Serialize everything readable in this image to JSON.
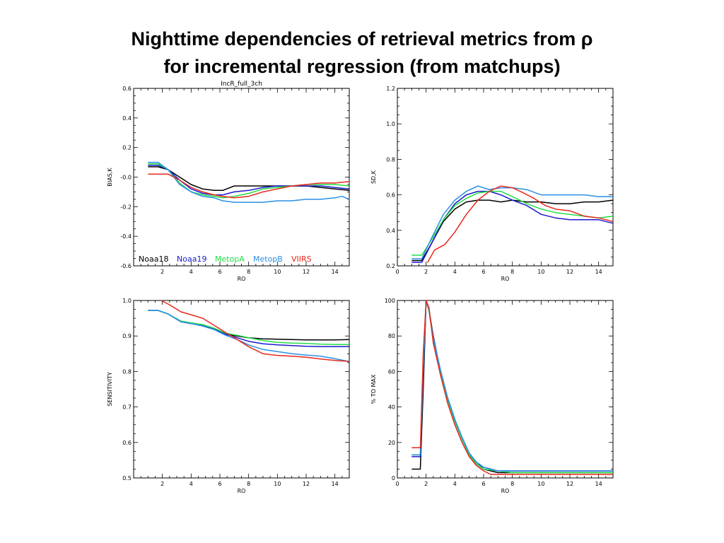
{
  "slide": {
    "title_line1": "Nighttime dependencies of retrieval metrics from ρ",
    "title_line2": "for incremental regression (from matchups)"
  },
  "colors": {
    "Noaa18": "#000000",
    "Noaa19": "#1a1acc",
    "MetopA": "#22dd44",
    "MetopB": "#2a8fe6",
    "VIIRS": "#e8281c"
  },
  "chart_data": [
    {
      "type": "line",
      "title": "IncR_full_3ch",
      "xlabel": "RO",
      "ylabel": "BIAS,K",
      "xlim": [
        0,
        15
      ],
      "ylim": [
        -0.6,
        0.6
      ],
      "xticks": [
        2,
        4,
        6,
        8,
        10,
        12,
        14
      ],
      "yticks": [
        -0.6,
        -0.4,
        -0.2,
        0.0,
        0.2,
        0.4,
        0.6
      ],
      "ytick_labels": [
        "-0.6",
        "-0.4",
        "-0.2",
        "-0.0",
        "0.2",
        "0.4",
        "0.6"
      ],
      "legend_placement": "bottom-left",
      "legend": [
        "Noaa18",
        "Noaa19",
        "MetopA",
        "MetopB",
        "VIIRS"
      ],
      "series": [
        {
          "name": "Noaa18",
          "x": [
            1,
            1.7,
            2.4,
            3.2,
            4,
            4.8,
            5.6,
            6.2,
            7,
            8,
            9,
            10,
            11,
            12,
            13,
            14,
            15
          ],
          "y": [
            0.07,
            0.07,
            0.05,
            0.0,
            -0.05,
            -0.08,
            -0.09,
            -0.09,
            -0.06,
            -0.06,
            -0.06,
            -0.06,
            -0.06,
            -0.06,
            -0.07,
            -0.08,
            -0.09
          ]
        },
        {
          "name": "Noaa19",
          "x": [
            1,
            1.7,
            2.4,
            3.2,
            4,
            4.8,
            5.6,
            6.2,
            7,
            8,
            9,
            10,
            11,
            12,
            13,
            14,
            15
          ],
          "y": [
            0.08,
            0.08,
            0.05,
            -0.02,
            -0.08,
            -0.11,
            -0.12,
            -0.12,
            -0.1,
            -0.09,
            -0.07,
            -0.06,
            -0.06,
            -0.06,
            -0.06,
            -0.07,
            -0.08
          ]
        },
        {
          "name": "MetopA",
          "x": [
            1,
            1.7,
            2.4,
            3.2,
            4,
            4.8,
            5.6,
            6.2,
            7,
            8,
            9,
            10,
            11,
            12,
            13,
            14,
            15
          ],
          "y": [
            0.09,
            0.09,
            0.05,
            -0.04,
            -0.1,
            -0.12,
            -0.13,
            -0.14,
            -0.13,
            -0.11,
            -0.08,
            -0.07,
            -0.06,
            -0.05,
            -0.05,
            -0.05,
            -0.06
          ]
        },
        {
          "name": "MetopB",
          "x": [
            1,
            1.7,
            2.4,
            3.2,
            4,
            4.8,
            5.6,
            6.2,
            7,
            8,
            9,
            10,
            11,
            12,
            13,
            14,
            14.5,
            15
          ],
          "y": [
            0.1,
            0.1,
            0.05,
            -0.05,
            -0.1,
            -0.13,
            -0.14,
            -0.16,
            -0.17,
            -0.17,
            -0.17,
            -0.16,
            -0.16,
            -0.15,
            -0.15,
            -0.14,
            -0.13,
            -0.15
          ]
        },
        {
          "name": "VIIRS",
          "x": [
            1,
            1.7,
            2.4,
            3.2,
            4,
            4.8,
            5.6,
            6.2,
            7,
            8,
            9,
            10,
            11,
            12,
            13,
            14,
            15
          ],
          "y": [
            0.02,
            0.02,
            0.02,
            -0.02,
            -0.07,
            -0.1,
            -0.12,
            -0.13,
            -0.14,
            -0.13,
            -0.1,
            -0.08,
            -0.06,
            -0.05,
            -0.04,
            -0.04,
            -0.03
          ]
        }
      ]
    },
    {
      "type": "line",
      "title": "",
      "xlabel": "RO",
      "ylabel": "SD,K",
      "xlim": [
        0,
        15
      ],
      "ylim": [
        0.2,
        1.2
      ],
      "xticks": [
        0,
        2,
        4,
        6,
        8,
        10,
        12,
        14
      ],
      "yticks": [
        0.2,
        0.4,
        0.6,
        0.8,
        1.0,
        1.2
      ],
      "ytick_labels": [
        "0.2",
        "0.4",
        "0.6",
        "0.8",
        "1.0",
        "1.2"
      ],
      "series": [
        {
          "name": "Noaa18",
          "x": [
            1,
            1.7,
            2.4,
            3.2,
            4,
            4.8,
            5.6,
            6.4,
            7.2,
            8,
            9,
            10,
            11,
            12,
            13,
            14,
            15
          ],
          "y": [
            0.23,
            0.23,
            0.33,
            0.45,
            0.52,
            0.56,
            0.57,
            0.57,
            0.56,
            0.57,
            0.56,
            0.56,
            0.55,
            0.55,
            0.56,
            0.56,
            0.57
          ]
        },
        {
          "name": "Noaa19",
          "x": [
            1,
            1.7,
            2.4,
            3.2,
            4,
            4.8,
            5.6,
            6.4,
            7.2,
            8,
            9,
            10,
            11,
            12,
            13,
            14,
            15
          ],
          "y": [
            0.22,
            0.22,
            0.33,
            0.46,
            0.55,
            0.6,
            0.62,
            0.62,
            0.6,
            0.57,
            0.54,
            0.49,
            0.47,
            0.46,
            0.46,
            0.46,
            0.44
          ]
        },
        {
          "name": "MetopA",
          "x": [
            1,
            1.7,
            2.4,
            3.2,
            4,
            4.8,
            5.6,
            6.4,
            7.2,
            8,
            9,
            10,
            11,
            12,
            13,
            14,
            15
          ],
          "y": [
            0.26,
            0.26,
            0.35,
            0.46,
            0.54,
            0.58,
            0.61,
            0.62,
            0.62,
            0.59,
            0.55,
            0.52,
            0.5,
            0.49,
            0.48,
            0.47,
            0.48
          ]
        },
        {
          "name": "MetopB",
          "x": [
            1,
            1.7,
            2.4,
            3.2,
            4,
            4.8,
            5.6,
            6.4,
            7.2,
            8,
            9,
            10,
            11,
            12,
            13,
            14,
            15
          ],
          "y": [
            0.24,
            0.24,
            0.36,
            0.49,
            0.57,
            0.62,
            0.65,
            0.63,
            0.64,
            0.64,
            0.63,
            0.6,
            0.6,
            0.6,
            0.6,
            0.59,
            0.59
          ]
        },
        {
          "name": "VIIRS",
          "x": [
            2.1,
            2.6,
            3.3,
            4,
            4.8,
            5.6,
            6.4,
            7.2,
            8,
            8.8,
            9.5,
            10.3,
            11,
            12,
            13,
            14,
            15
          ],
          "y": [
            0.22,
            0.29,
            0.32,
            0.39,
            0.49,
            0.57,
            0.62,
            0.65,
            0.64,
            0.61,
            0.58,
            0.54,
            0.52,
            0.51,
            0.48,
            0.47,
            0.45
          ]
        }
      ]
    },
    {
      "type": "line",
      "title": "",
      "xlabel": "RO",
      "ylabel": "SENSITIVITY",
      "xlim": [
        0,
        15
      ],
      "ylim": [
        0.5,
        1.0
      ],
      "xticks": [
        2,
        4,
        6,
        8,
        10,
        12,
        14
      ],
      "yticks": [
        0.5,
        0.6,
        0.7,
        0.8,
        0.9,
        1.0
      ],
      "ytick_labels": [
        "0.5",
        "0.6",
        "0.7",
        "0.8",
        "0.9",
        "1.0"
      ],
      "series": [
        {
          "name": "Noaa18",
          "x": [
            1,
            1.7,
            2.4,
            3.3,
            4,
            4.8,
            5.6,
            6.4,
            7.2,
            8,
            9,
            10,
            11,
            12,
            13,
            14,
            15
          ],
          "y": [
            0.972,
            0.972,
            0.962,
            0.94,
            0.935,
            0.93,
            0.92,
            0.905,
            0.9,
            0.895,
            0.892,
            0.891,
            0.89,
            0.889,
            0.889,
            0.889,
            0.89
          ]
        },
        {
          "name": "Noaa19",
          "x": [
            1,
            1.7,
            2.4,
            3.3,
            4,
            4.8,
            5.6,
            6.4,
            7.2,
            8,
            9,
            10,
            11,
            12,
            13,
            14,
            15
          ],
          "y": [
            0.972,
            0.972,
            0.962,
            0.94,
            0.935,
            0.93,
            0.92,
            0.905,
            0.895,
            0.885,
            0.878,
            0.875,
            0.873,
            0.871,
            0.87,
            0.87,
            0.87
          ]
        },
        {
          "name": "MetopA",
          "x": [
            1,
            1.7,
            2.4,
            3.3,
            4,
            4.8,
            5.6,
            6.4,
            7.2,
            8,
            9,
            10,
            11,
            12,
            13,
            14,
            15
          ],
          "y": [
            0.972,
            0.972,
            0.962,
            0.942,
            0.937,
            0.932,
            0.922,
            0.908,
            0.902,
            0.895,
            0.887,
            0.882,
            0.88,
            0.879,
            0.877,
            0.876,
            0.876
          ]
        },
        {
          "name": "MetopB",
          "x": [
            1,
            1.7,
            2.4,
            3.3,
            4,
            4.8,
            5.6,
            6.4,
            7.2,
            8,
            9,
            10,
            11,
            12,
            13,
            14,
            15
          ],
          "y": [
            0.972,
            0.972,
            0.962,
            0.94,
            0.935,
            0.928,
            0.918,
            0.902,
            0.89,
            0.875,
            0.862,
            0.856,
            0.85,
            0.846,
            0.843,
            0.836,
            0.828
          ]
        },
        {
          "name": "VIIRS",
          "x": [
            1.9,
            2.4,
            3.3,
            4,
            4.8,
            5.6,
            6.4,
            7.2,
            8,
            9,
            10,
            11,
            12,
            13,
            14,
            15
          ],
          "y": [
            1.0,
            0.99,
            0.968,
            0.96,
            0.95,
            0.93,
            0.91,
            0.89,
            0.87,
            0.85,
            0.845,
            0.843,
            0.84,
            0.835,
            0.831,
            0.828
          ]
        }
      ]
    },
    {
      "type": "line",
      "title": "",
      "xlabel": "RO",
      "ylabel": "% TO MAX",
      "xlim": [
        0,
        15
      ],
      "ylim": [
        0,
        100
      ],
      "xticks": [
        0,
        2,
        4,
        6,
        8,
        10,
        12,
        14
      ],
      "yticks": [
        0,
        20,
        40,
        60,
        80,
        100
      ],
      "ytick_labels": [
        "0",
        "20",
        "40",
        "60",
        "80",
        "100"
      ],
      "series": [
        {
          "name": "Noaa18",
          "x": [
            1,
            1.6,
            1.62,
            1.8,
            2.0,
            2.2,
            2.5,
            3,
            3.5,
            4,
            4.5,
            5,
            5.5,
            6,
            7,
            8,
            10,
            12,
            14,
            15
          ],
          "y": [
            5,
            5,
            10,
            50,
            100,
            95,
            80,
            60,
            45,
            33,
            22,
            13,
            8,
            5,
            3,
            3,
            3,
            3,
            3,
            3
          ]
        },
        {
          "name": "Noaa19",
          "x": [
            1,
            1.6,
            1.62,
            1.8,
            2.0,
            2.2,
            2.5,
            3,
            3.5,
            4,
            4.5,
            5,
            5.5,
            6,
            7,
            8,
            10,
            12,
            14,
            15
          ],
          "y": [
            12,
            12,
            18,
            60,
            100,
            95,
            78,
            60,
            44,
            32,
            22,
            13,
            8,
            6,
            4,
            4,
            4,
            4,
            4,
            4
          ]
        },
        {
          "name": "MetopA",
          "x": [
            1,
            1.6,
            1.62,
            1.8,
            2.0,
            2.2,
            2.5,
            3,
            3.5,
            4,
            4.5,
            5,
            5.5,
            6,
            7,
            8,
            10,
            12,
            14,
            15
          ],
          "y": [
            13,
            13,
            20,
            62,
            100,
            94,
            78,
            60,
            44,
            32,
            22,
            13,
            8,
            5,
            4,
            3,
            3,
            3,
            3,
            3
          ]
        },
        {
          "name": "MetopB",
          "x": [
            1,
            1.6,
            1.62,
            1.8,
            2.0,
            2.2,
            2.5,
            3,
            3.5,
            4,
            4.5,
            5,
            5.5,
            6,
            7,
            8,
            10,
            12,
            14,
            15
          ],
          "y": [
            13,
            13,
            20,
            62,
            100,
            95,
            79,
            61,
            45,
            33,
            23,
            14,
            9,
            6,
            4,
            4,
            4,
            4,
            4,
            4
          ]
        },
        {
          "name": "VIIRS",
          "x": [
            1,
            1.6,
            1.62,
            1.8,
            2.0,
            2.2,
            2.5,
            3,
            3.5,
            4,
            4.5,
            5,
            5.5,
            6,
            6.5,
            7,
            8,
            10,
            12,
            14,
            15
          ],
          "y": [
            17,
            17,
            22,
            70,
            100,
            96,
            76,
            58,
            42,
            30,
            20,
            12,
            7,
            4,
            2,
            2,
            2,
            2,
            2,
            2,
            2
          ]
        }
      ]
    }
  ]
}
